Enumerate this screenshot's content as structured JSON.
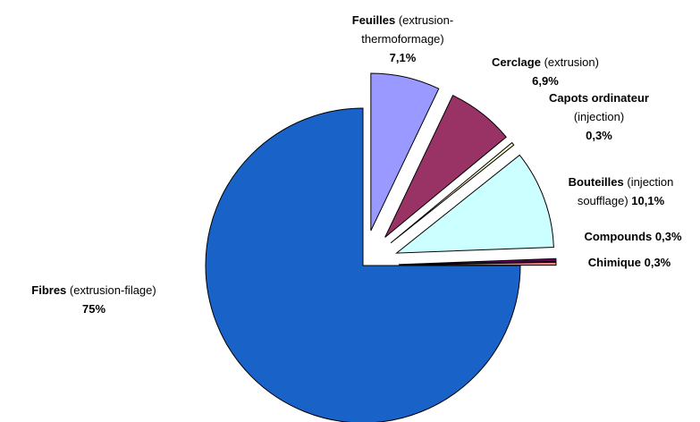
{
  "chart_data": {
    "type": "pie",
    "categories": [
      "Fibres",
      "Feuilles",
      "Cerclage",
      "Capots ordinateur",
      "Bouteilles",
      "Compounds",
      "Chimique"
    ],
    "descriptions": [
      "(extrusion-filage)",
      "(extrusion-thermoformage)",
      "(extrusion)",
      "(injection)",
      "(injection soufflage)",
      null,
      null
    ],
    "values": [
      75,
      7.1,
      6.9,
      0.3,
      10.1,
      0.3,
      0.3
    ],
    "value_labels": [
      "75%",
      "7,1%",
      "6,9%",
      "0,3%",
      "10,1%",
      "0,3%",
      "0,3%"
    ],
    "colors": [
      "#1862c8",
      "#9999ff",
      "#993366",
      "#ffffcc",
      "#ccffff",
      "#660066",
      "#ff8080"
    ],
    "exploded": [
      false,
      true,
      true,
      true,
      true,
      true,
      true
    ]
  }
}
